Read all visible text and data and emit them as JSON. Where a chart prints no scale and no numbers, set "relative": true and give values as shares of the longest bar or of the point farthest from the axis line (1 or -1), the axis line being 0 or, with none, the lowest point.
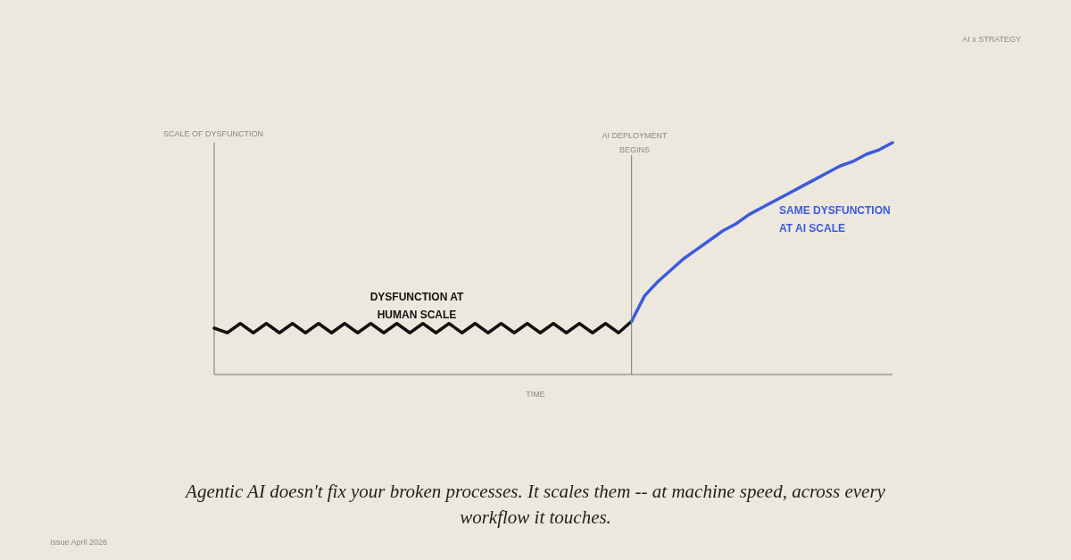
{
  "chart_data": {
    "type": "line",
    "relative": true,
    "ylabel": "SCALE OF DYSFUNCTION",
    "xlabel": "TIME",
    "grid": false,
    "line_style": "solid",
    "marker": "none",
    "categories": [
      null,
      null,
      null,
      null,
      null,
      null,
      null,
      null,
      null,
      null,
      null,
      null,
      null,
      null,
      null,
      null,
      null,
      null,
      null,
      null,
      null,
      null,
      null,
      null,
      null,
      null,
      null,
      null,
      null,
      null,
      null,
      null,
      null,
      null,
      null,
      null,
      null,
      null,
      null,
      null,
      null,
      null,
      null,
      null,
      null,
      null,
      null,
      null,
      null,
      null,
      null,
      null,
      null
    ],
    "series": [
      {
        "color": "#111111",
        "values": [
          0.2,
          0.18,
          0.22,
          0.18,
          0.22,
          0.18,
          0.22,
          0.18,
          0.22,
          0.18,
          0.22,
          0.18,
          0.22,
          0.18,
          0.22,
          0.18,
          0.22,
          0.18,
          0.22,
          0.18,
          0.22,
          0.18,
          0.22,
          0.18,
          0.22,
          0.18,
          0.22,
          0.18,
          0.22,
          0.18,
          0.22,
          0.18,
          0.23,
          null,
          null,
          null,
          null,
          null,
          null,
          null,
          null,
          null,
          null,
          null,
          null,
          null,
          null,
          null,
          null,
          null,
          null,
          null,
          null
        ]
      },
      {
        "color": "#3b5bdb",
        "values": [
          null,
          null,
          null,
          null,
          null,
          null,
          null,
          null,
          null,
          null,
          null,
          null,
          null,
          null,
          null,
          null,
          null,
          null,
          null,
          null,
          null,
          null,
          null,
          null,
          null,
          null,
          null,
          null,
          null,
          null,
          null,
          null,
          0.23,
          0.34,
          0.4,
          0.45,
          0.5,
          0.54,
          0.58,
          0.62,
          0.65,
          0.69,
          0.72,
          0.75,
          0.78,
          0.81,
          0.84,
          0.87,
          0.9,
          0.92,
          0.95,
          0.97,
          1.0
        ]
      }
    ],
    "annotations": [
      "AI DEPLOYMENT\nBEGINS",
      "DYSFUNCTION AT\nHUMAN SCALE",
      "SAME DYSFUNCTION\nAT AI SCALE",
      "Agentic AI doesn't fix your broken processes. It scales them -- at machine speed, across every\nworkflow it touches.",
      "AI x STRATEGY",
      "Issue  April 2026"
    ]
  }
}
